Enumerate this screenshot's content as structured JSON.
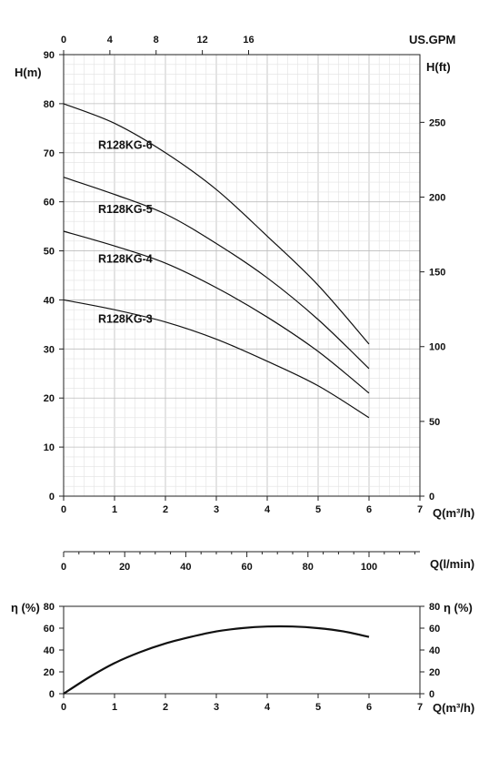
{
  "chart_data": [
    {
      "type": "line",
      "title": "",
      "xlabel": "Q(m³/h)",
      "ylabel": "H(m)",
      "ylabel_right": "H(ft)",
      "xlabel_top": "US.GPM",
      "xlabel_lmin": "Q(l/min)",
      "xlim": [
        0,
        7
      ],
      "ylim": [
        0,
        90
      ],
      "x_ticks": [
        "0",
        "1",
        "2",
        "3",
        "4",
        "5",
        "6",
        "7"
      ],
      "y_ticks": [
        "0",
        "10",
        "20",
        "30",
        "40",
        "50",
        "60",
        "70",
        "80",
        "90"
      ],
      "y_ticks_right": [
        "0",
        "50",
        "100",
        "150",
        "200",
        "250"
      ],
      "y_ticks_right_values": [
        0,
        50,
        100,
        150,
        200,
        250
      ],
      "top_ticks": [
        "0",
        "4",
        "8",
        "12",
        "16"
      ],
      "top_ticks_values": [
        0,
        4,
        8,
        12,
        16
      ],
      "lmin_ticks": [
        "0",
        "20",
        "40",
        "60",
        "80",
        "100"
      ],
      "lmin_ticks_values": [
        0,
        20,
        40,
        60,
        80,
        100
      ],
      "grid": true,
      "series": [
        {
          "name": "R128KG-6",
          "x": [
            0,
            1,
            2,
            3,
            4,
            5,
            6
          ],
          "y": [
            80,
            76,
            70,
            62.5,
            53,
            43,
            31
          ]
        },
        {
          "name": "R128KG-5",
          "x": [
            0,
            1,
            2,
            3,
            4,
            5,
            6
          ],
          "y": [
            65,
            61.5,
            57.5,
            51.5,
            44.5,
            36,
            26
          ]
        },
        {
          "name": "R128KG-4",
          "x": [
            0,
            1,
            2,
            3,
            4,
            5,
            6
          ],
          "y": [
            54,
            51,
            47.5,
            42.5,
            36.5,
            29.5,
            21
          ]
        },
        {
          "name": "R128KG-3",
          "x": [
            0,
            1,
            2,
            3,
            4,
            5,
            6
          ],
          "y": [
            40,
            38,
            35.5,
            32,
            27.5,
            22.5,
            16
          ]
        }
      ],
      "label_positions_q": [
        1.75,
        1.75,
        1.75,
        1.75
      ]
    },
    {
      "type": "line",
      "title": "",
      "xlabel": "Q(m³/h)",
      "ylabel": "η (%)",
      "ylabel_right": "η (%)",
      "xlim": [
        0,
        7
      ],
      "ylim": [
        0,
        80
      ],
      "x_ticks": [
        "0",
        "1",
        "2",
        "3",
        "4",
        "5",
        "6",
        "7"
      ],
      "y_ticks": [
        "0",
        "20",
        "40",
        "60",
        "80"
      ],
      "grid": false,
      "series": [
        {
          "name": "",
          "x": [
            0,
            0.5,
            1,
            1.5,
            2,
            2.5,
            3,
            3.5,
            4,
            4.5,
            5,
            5.5,
            6
          ],
          "y": [
            0,
            15,
            28,
            38,
            46,
            52,
            57,
            60,
            61.5,
            61.5,
            60,
            57,
            52
          ]
        }
      ]
    }
  ]
}
